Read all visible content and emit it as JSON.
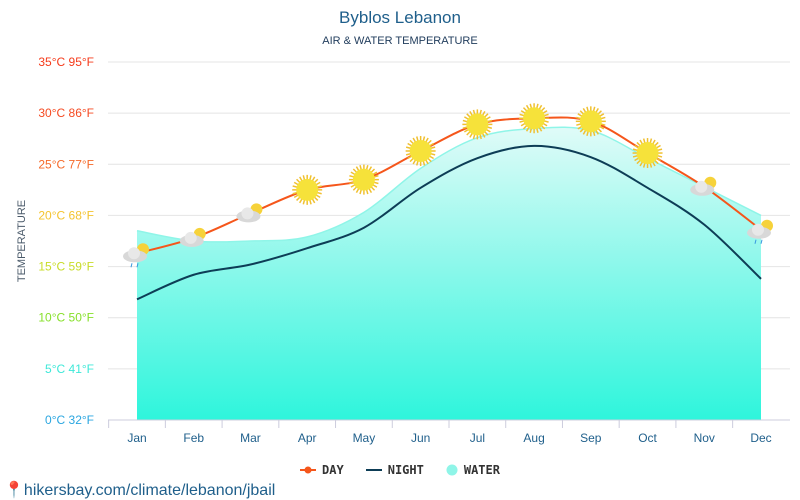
{
  "footer": "hikersbay.com/climate/lebanon/jbail",
  "chart_data": {
    "type": "line",
    "title": "Byblos Lebanon",
    "subtitle": "AIR & WATER TEMPERATURE",
    "ylabel": "TEMPERATURE",
    "ylim": [
      0,
      35
    ],
    "yticks": [
      {
        "v": 0,
        "label": "0°C 32°F",
        "color": "#2aa6e0"
      },
      {
        "v": 5,
        "label": "5°C 41°F",
        "color": "#3ee8d8"
      },
      {
        "v": 10,
        "label": "10°C 50°F",
        "color": "#86e02a"
      },
      {
        "v": 15,
        "label": "15°C 59°F",
        "color": "#c8dc28"
      },
      {
        "v": 20,
        "label": "20°C 68°F",
        "color": "#f4c430"
      },
      {
        "v": 25,
        "label": "25°C 77°F",
        "color": "#f56a2a"
      },
      {
        "v": 30,
        "label": "30°C 86°F",
        "color": "#f54a22"
      },
      {
        "v": 35,
        "label": "35°C 95°F",
        "color": "#f53a1a"
      }
    ],
    "grid": true,
    "legend_position": "bottom",
    "categories": [
      "Jan",
      "Feb",
      "Mar",
      "Apr",
      "May",
      "Jun",
      "Jul",
      "Aug",
      "Sep",
      "Oct",
      "Nov",
      "Dec"
    ],
    "icons": [
      "rain-sun-cloud",
      "partly-cloudy",
      "partly-cloudy",
      "sun",
      "sun",
      "sun",
      "sun",
      "sun",
      "sun",
      "sun",
      "partly-cloudy",
      "rain-sun-cloud"
    ],
    "series": [
      {
        "name": "DAY",
        "color": "#f5561b",
        "values": [
          16.3,
          17.8,
          20.2,
          22.5,
          23.5,
          26.3,
          28.9,
          29.5,
          29.2,
          26.1,
          22.8,
          18.6
        ]
      },
      {
        "name": "NIGHT",
        "color": "#0d3d56",
        "values": [
          11.8,
          14.2,
          15.2,
          16.8,
          18.8,
          22.7,
          25.6,
          26.8,
          25.7,
          22.7,
          19.1,
          13.8
        ]
      },
      {
        "name": "WATER",
        "color": "#8ff5e8",
        "values": [
          18.5,
          17.5,
          17.5,
          17.9,
          20.3,
          24.6,
          27.6,
          28.5,
          28.3,
          25.6,
          22.8,
          20.0
        ]
      }
    ]
  }
}
